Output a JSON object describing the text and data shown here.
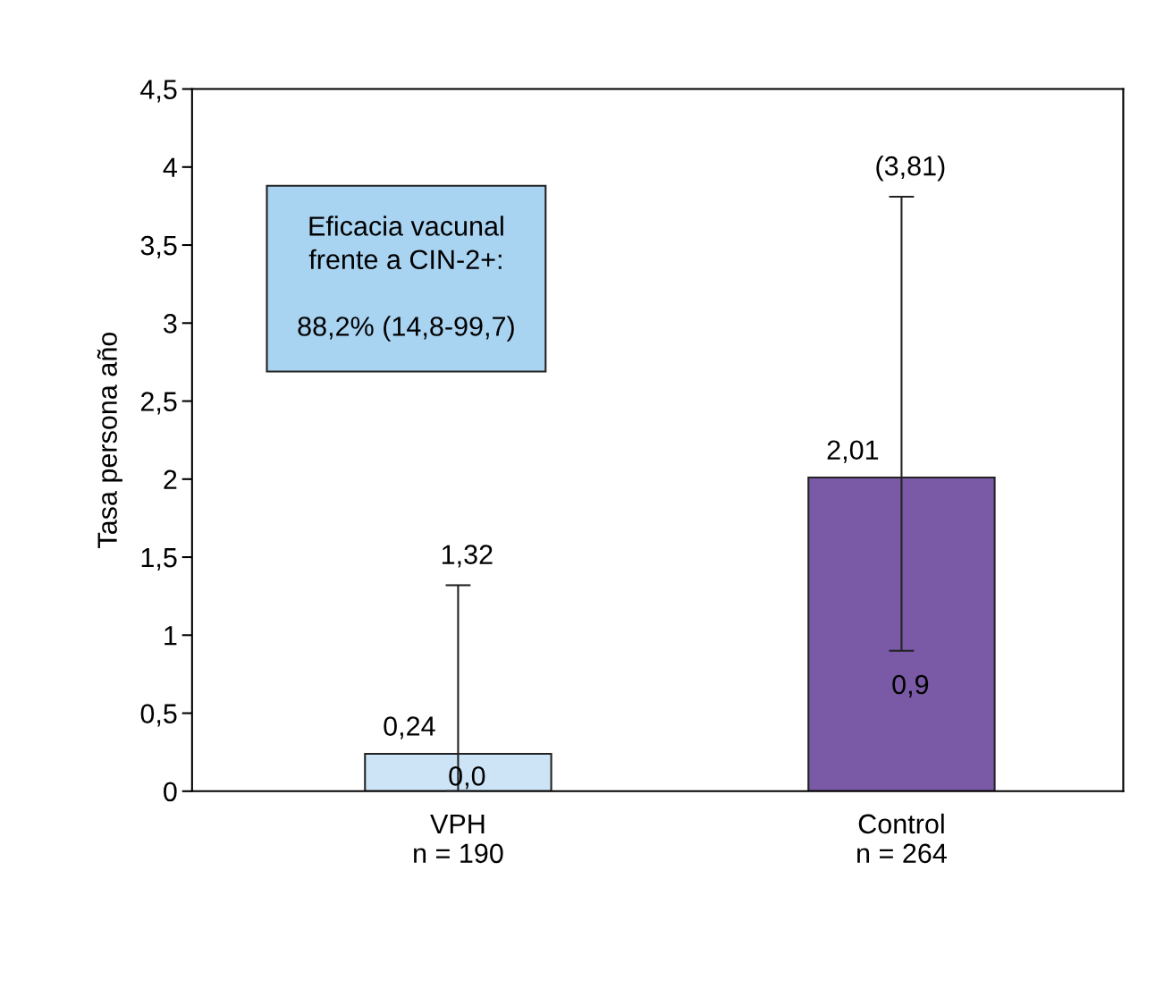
{
  "chart_data": {
    "type": "bar",
    "ylabel": "Tasa persona año",
    "categories": [
      "VPH\nn = 190",
      "Control\nn = 264"
    ],
    "values": [
      0.24,
      2.01
    ],
    "colors": [
      "#cde4f6",
      "#7a5aa6"
    ],
    "value_labels": [
      "0,24",
      "2,01"
    ],
    "errors": [
      [
        0.0,
        1.32
      ],
      [
        0.9,
        3.81
      ]
    ],
    "ylim": [
      0,
      4.5
    ],
    "yticks": [
      0,
      {
        "value": 0.5,
        "label": "0,5"
      },
      1,
      {
        "value": 1.5,
        "label": "1,5"
      },
      2,
      {
        "value": 2.5,
        "label": "2,5"
      },
      3,
      {
        "value": 3.5,
        "label": "3,5"
      },
      4,
      {
        "value": 4.5,
        "label": "4,5"
      }
    ],
    "grid": false,
    "legend": false,
    "annotations": [
      {
        "text": "1,32",
        "x": "VPH\nn = 190",
        "y": 1.32
      },
      {
        "text": "0,0",
        "x": "VPH\nn = 190",
        "y": 0
      },
      {
        "text": "(3,81)",
        "x": "Control\nn = 264",
        "y": 3.81
      },
      {
        "text": "0,9",
        "x": "Control\nn = 264",
        "y": 0.9
      },
      "Eficacia vacunal\nfrente a CIN-2+:\n\n88,2% (14,8-99,7)"
    ]
  }
}
